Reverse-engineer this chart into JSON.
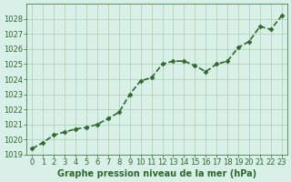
{
  "x": [
    0,
    1,
    2,
    3,
    4,
    5,
    6,
    7,
    8,
    9,
    10,
    11,
    12,
    13,
    14,
    15,
    16,
    17,
    18,
    19,
    20,
    21,
    22,
    23
  ],
  "y": [
    1019.4,
    1019.8,
    1020.3,
    1020.5,
    1020.7,
    1020.8,
    1021.0,
    1021.4,
    1021.8,
    1023.0,
    1023.9,
    1024.1,
    1025.0,
    1025.2,
    1025.2,
    1024.9,
    1024.5,
    1025.0,
    1025.2,
    1026.1,
    1026.5,
    1027.5,
    1027.3,
    1028.2
  ],
  "ylim": [
    1019,
    1029
  ],
  "xlim": [
    0,
    23
  ],
  "yticks": [
    1019,
    1020,
    1021,
    1022,
    1023,
    1024,
    1025,
    1026,
    1027,
    1028
  ],
  "xticks": [
    0,
    1,
    2,
    3,
    4,
    5,
    6,
    7,
    8,
    9,
    10,
    11,
    12,
    13,
    14,
    15,
    16,
    17,
    18,
    19,
    20,
    21,
    22,
    23
  ],
  "line_color": "#2d6a2d",
  "marker_color": "#2d6a2d",
  "bg_color": "#d8f0e8",
  "grid_color": "#aacfaa",
  "xlabel": "Graphe pression niveau de la mer (hPa)",
  "xlabel_fontsize": 7,
  "tick_fontsize": 6,
  "line_width": 1.2,
  "marker_size": 2.5
}
